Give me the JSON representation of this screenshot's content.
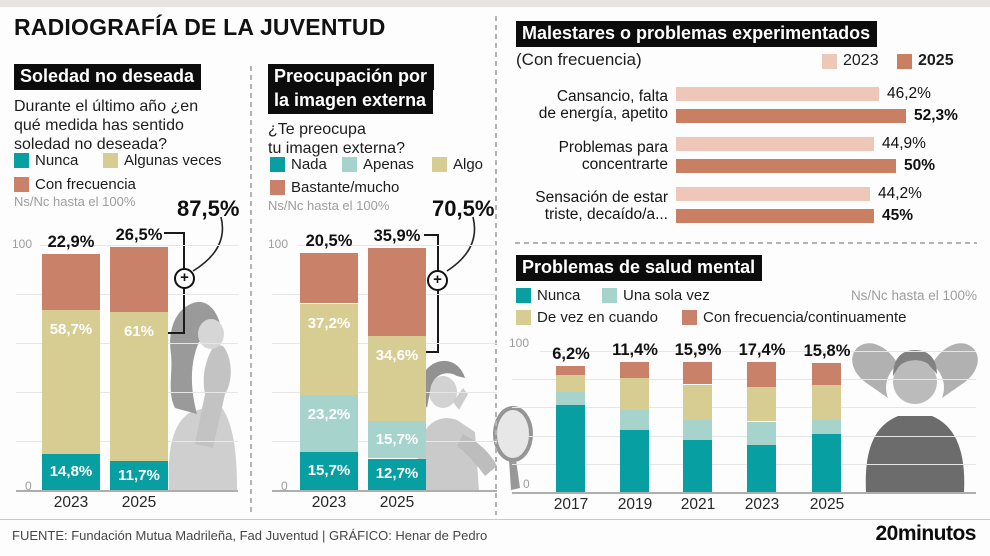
{
  "meta": {
    "title": "RADIOGRAFÍA DE LA JUVENTUD",
    "source": "FUENTE: Fundación Mutua Madrileña, Fad Juventud  |  GRÁFICO: Henar de Pedro",
    "brand": "20minutos"
  },
  "icons": {
    "plus_badge": "+"
  },
  "colors": {
    "teal": "#089fa3",
    "light_teal": "#a6d4cd",
    "khaki": "#d7cd92",
    "salmon": "#c9816a",
    "pink_2023": "#efc7b8",
    "salmon_2025": "#c87f62",
    "grid": "#e6e6e6",
    "axis": "#aeaeae",
    "muted": "#9d9d9d",
    "header_bg": "#0c0c0c"
  },
  "chart_data": [
    {
      "id": "soledad-no-deseada",
      "type": "bar",
      "stacked": true,
      "title": "Soledad no deseada",
      "question_lines": [
        "Durante el último año ¿en",
        "qué medida has sentido",
        "soledad no deseada?"
      ],
      "note": "Ns/Nc hasta el 100%",
      "combined_callout": "87,5%",
      "yticks": [
        "100",
        "0"
      ],
      "ylim": [
        0,
        100
      ],
      "legend_position": "top",
      "categories": [
        "2023",
        "2025"
      ],
      "series": [
        {
          "name": "Nunca",
          "color": "teal",
          "values": [
            14.8,
            11.7
          ],
          "value_labels": [
            "14,8%",
            "11,7%"
          ]
        },
        {
          "name": "Algunas veces",
          "color": "khaki",
          "values": [
            58.7,
            61
          ],
          "value_labels": [
            "58,7%",
            "61%"
          ]
        },
        {
          "name": "Con frecuencia",
          "color": "salmon",
          "values": [
            22.9,
            26.5
          ],
          "value_labels": [
            "22,9%",
            "26,5%"
          ]
        }
      ]
    },
    {
      "id": "preocupacion-imagen-externa",
      "type": "bar",
      "stacked": true,
      "title_lines": [
        "Preocupación por",
        "la imagen externa"
      ],
      "question_lines": [
        "¿Te preocupa",
        "tu imagen externa?"
      ],
      "note": "Ns/Nc hasta el 100%",
      "combined_callout": "70,5%",
      "yticks": [
        "100",
        "0"
      ],
      "ylim": [
        0,
        100
      ],
      "legend_position": "top",
      "categories": [
        "2023",
        "2025"
      ],
      "series": [
        {
          "name": "Nada",
          "color": "teal",
          "values": [
            15.7,
            12.7
          ],
          "value_labels": [
            "15,7%",
            "12,7%"
          ]
        },
        {
          "name": "Apenas",
          "color": "light_teal",
          "values": [
            23.2,
            15.7
          ],
          "value_labels": [
            "23,2%",
            "15,7%"
          ]
        },
        {
          "name": "Algo",
          "color": "khaki",
          "values": [
            37.2,
            34.6
          ],
          "value_labels": [
            "37,2%",
            "34,6%"
          ]
        },
        {
          "name": "Bastante/mucho",
          "color": "salmon",
          "values": [
            20.5,
            35.9
          ],
          "value_labels": [
            "20,5%",
            "35,9%"
          ]
        }
      ]
    },
    {
      "id": "malestares-experimentados",
      "type": "bar",
      "orientation": "horizontal",
      "grouped": true,
      "title": "Malestares o problemas experimentados",
      "subtitle": "(Con frecuencia)",
      "xlim": [
        0,
        100
      ],
      "legend_position": "top-right",
      "categories": [
        "Cansancio, falta de energía, apetito",
        "Problemas para concentrarte",
        "Sensación de estar triste, decaído/a..."
      ],
      "category_lines": [
        [
          "Cansancio, falta",
          "de energía, apetito"
        ],
        [
          "Problemas para",
          "concentrarte"
        ],
        [
          "Sensación de estar",
          "triste, decaído/a..."
        ]
      ],
      "series": [
        {
          "name": "2023",
          "color": "pink_2023",
          "values": [
            46.2,
            44.9,
            44.2
          ],
          "value_labels": [
            "46,2%",
            "44,9%",
            "44,2%"
          ]
        },
        {
          "name": "2025",
          "color": "salmon_2025",
          "values": [
            52.3,
            50,
            45
          ],
          "value_labels": [
            "52,3%",
            "50%",
            "45%"
          ]
        }
      ]
    },
    {
      "id": "problemas-salud-mental",
      "type": "bar",
      "stacked": true,
      "title": "Problemas de salud mental",
      "note": "Ns/Nc hasta el 100%",
      "yticks": [
        "100",
        "0"
      ],
      "ylim": [
        0,
        100
      ],
      "legend_position": "top",
      "categories": [
        "2017",
        "2019",
        "2021",
        "2023",
        "2025"
      ],
      "series": [
        {
          "name": "Nunca",
          "color": "teal",
          "values": [
            62,
            44,
            37,
            34,
            41
          ],
          "estimated_from_chart": true
        },
        {
          "name": "Una sola vez",
          "color": "light_teal",
          "values": [
            9,
            14,
            14,
            16,
            10
          ],
          "estimated_from_chart": true
        },
        {
          "name": "De vez en cuando",
          "color": "khaki",
          "values": [
            12,
            23,
            25,
            25,
            25
          ],
          "estimated_from_chart": true
        },
        {
          "name": "Con frecuencia/continuamente",
          "color": "salmon",
          "values": [
            6.2,
            11.4,
            15.9,
            17.4,
            15.8
          ],
          "value_labels": [
            "6,2%",
            "11,4%",
            "15,9%",
            "17,4%",
            "15,8%"
          ]
        }
      ]
    }
  ]
}
